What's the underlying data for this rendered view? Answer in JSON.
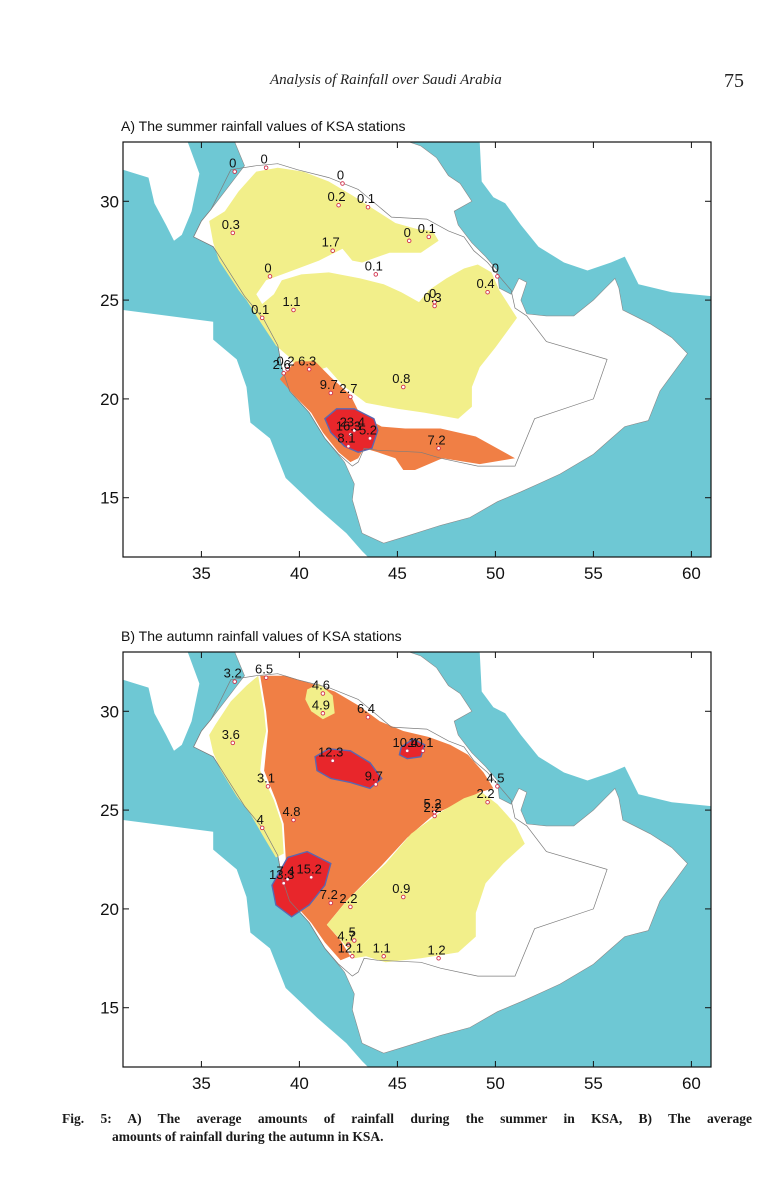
{
  "header": {
    "title": "Analysis of Rainfall over Saudi Arabia",
    "page_number": "75"
  },
  "colors": {
    "sea": "#6ec8d4",
    "land_outside": "#ffffff",
    "low": "#f2ef8a",
    "medium": "#f07f45",
    "high": "#e8262b",
    "contour": "#5b67b0",
    "station": "#d1304b"
  },
  "axes": {
    "x_ticks": [
      "35",
      "40",
      "45",
      "50",
      "55",
      "60"
    ],
    "y_ticks": [
      "30",
      "25",
      "20",
      "15"
    ],
    "x_range": [
      31,
      61
    ],
    "y_range": [
      12,
      33
    ]
  },
  "maps": [
    {
      "id": "summer",
      "title": "A) The summer rainfall values of KSA stations",
      "stations": [
        {
          "value": "0",
          "lon": 36.7,
          "lat": 31.5
        },
        {
          "value": "0",
          "lon": 38.3,
          "lat": 31.7
        },
        {
          "value": "0",
          "lon": 42.2,
          "lat": 30.9
        },
        {
          "value": "0.2",
          "lon": 42.0,
          "lat": 29.8
        },
        {
          "value": "0.1",
          "lon": 43.5,
          "lat": 29.7
        },
        {
          "value": "0.3",
          "lon": 36.6,
          "lat": 28.4
        },
        {
          "value": "0",
          "lon": 45.6,
          "lat": 28.0
        },
        {
          "value": "0.1",
          "lon": 46.6,
          "lat": 28.2
        },
        {
          "value": "1.7",
          "lon": 41.7,
          "lat": 27.5
        },
        {
          "value": "0",
          "lon": 38.5,
          "lat": 26.2
        },
        {
          "value": "0.1",
          "lon": 43.9,
          "lat": 26.3
        },
        {
          "value": "0",
          "lon": 50.1,
          "lat": 26.2
        },
        {
          "value": "0",
          "lon": 46.9,
          "lat": 24.9
        },
        {
          "value": "0.4",
          "lon": 49.6,
          "lat": 25.4
        },
        {
          "value": "1.1",
          "lon": 39.7,
          "lat": 24.5
        },
        {
          "value": "0.1",
          "lon": 38.1,
          "lat": 24.1
        },
        {
          "value": "0.3",
          "lon": 46.9,
          "lat": 24.7
        },
        {
          "value": "0.2",
          "lon": 39.4,
          "lat": 21.5
        },
        {
          "value": "6.3",
          "lon": 40.5,
          "lat": 21.5
        },
        {
          "value": "2.6",
          "lon": 39.2,
          "lat": 21.3
        },
        {
          "value": "9.7",
          "lon": 41.6,
          "lat": 20.3
        },
        {
          "value": "2.7",
          "lon": 42.6,
          "lat": 20.1
        },
        {
          "value": "0.8",
          "lon": 45.3,
          "lat": 20.6
        },
        {
          "value": "23.4",
          "lon": 42.8,
          "lat": 18.4
        },
        {
          "value": "16.3",
          "lon": 42.6,
          "lat": 18.2
        },
        {
          "value": "5.2",
          "lon": 43.6,
          "lat": 18.0
        },
        {
          "value": "8.1",
          "lon": 42.5,
          "lat": 17.6
        },
        {
          "value": "7.2",
          "lon": 47.1,
          "lat": 17.5
        }
      ]
    },
    {
      "id": "autumn",
      "title": "B) The autumn rainfall values of KSA stations",
      "stations": [
        {
          "value": "3.2",
          "lon": 36.7,
          "lat": 31.5
        },
        {
          "value": "6.5",
          "lon": 38.3,
          "lat": 31.7
        },
        {
          "value": "4.6",
          "lon": 41.2,
          "lat": 30.9
        },
        {
          "value": "4.9",
          "lon": 41.2,
          "lat": 29.9
        },
        {
          "value": "6.4",
          "lon": 43.5,
          "lat": 29.7
        },
        {
          "value": "3.6",
          "lon": 36.6,
          "lat": 28.4
        },
        {
          "value": "12.3",
          "lon": 41.7,
          "lat": 27.5
        },
        {
          "value": "10.4",
          "lon": 45.5,
          "lat": 28.0
        },
        {
          "value": "10.1",
          "lon": 46.3,
          "lat": 28.0
        },
        {
          "value": "3.1",
          "lon": 38.4,
          "lat": 26.2
        },
        {
          "value": "9.7",
          "lon": 43.9,
          "lat": 26.3
        },
        {
          "value": "4.5",
          "lon": 50.1,
          "lat": 26.2
        },
        {
          "value": "2.2",
          "lon": 49.6,
          "lat": 25.4
        },
        {
          "value": "5.2",
          "lon": 46.9,
          "lat": 24.9
        },
        {
          "value": "4.8",
          "lon": 39.7,
          "lat": 24.5
        },
        {
          "value": "4",
          "lon": 38.1,
          "lat": 24.1
        },
        {
          "value": "2.2",
          "lon": 46.9,
          "lat": 24.7
        },
        {
          "value": "7.4",
          "lon": 39.4,
          "lat": 21.5
        },
        {
          "value": "15.2",
          "lon": 40.6,
          "lat": 21.6
        },
        {
          "value": "13.3",
          "lon": 39.2,
          "lat": 21.3
        },
        {
          "value": "0.9",
          "lon": 45.3,
          "lat": 20.6
        },
        {
          "value": "7.2",
          "lon": 41.6,
          "lat": 20.3
        },
        {
          "value": "2.2",
          "lon": 42.6,
          "lat": 20.1
        },
        {
          "value": "5",
          "lon": 42.8,
          "lat": 18.4
        },
        {
          "value": "4.7",
          "lon": 42.5,
          "lat": 18.2
        },
        {
          "value": "1.1",
          "lon": 44.3,
          "lat": 17.6
        },
        {
          "value": "12.1",
          "lon": 42.7,
          "lat": 17.6
        },
        {
          "value": "1.2",
          "lon": 47.1,
          "lat": 17.5
        }
      ]
    }
  ],
  "caption": {
    "line1": "Fig. 5: A) The average amounts of rainfall during the summer in KSA, B) The average",
    "line2": "amounts of rainfall during the autumn in KSA."
  }
}
